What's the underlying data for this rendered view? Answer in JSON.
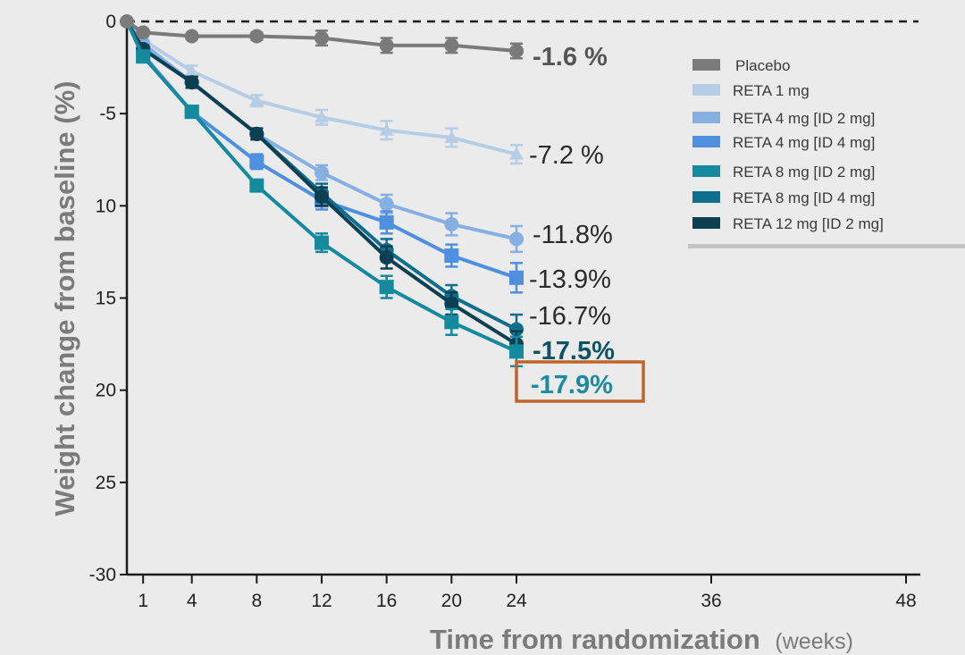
{
  "chart_data": {
    "type": "line",
    "title": "",
    "xlabel": "Time from randomization",
    "xlabel_unit": "(weeks)",
    "ylabel": "Weight change from baseline (%)",
    "xlim": [
      0,
      48
    ],
    "ylim": [
      -30,
      0
    ],
    "x_ticks": [
      1,
      4,
      8,
      12,
      16,
      20,
      24,
      36,
      48
    ],
    "y_ticks": [
      0,
      -5,
      -10,
      -15,
      -20,
      -25,
      -30
    ],
    "y_tick_labels": [
      "0",
      "-5",
      "10",
      "15",
      "20",
      "25",
      "-30"
    ],
    "reference_line": {
      "y": 0,
      "style": "dashed"
    },
    "grid": false,
    "legend_position": "top-right",
    "x": [
      0,
      1,
      4,
      8,
      12,
      16,
      20,
      24
    ],
    "series": [
      {
        "name": "Placebo",
        "color": "#7a7a7a",
        "marker": "circle",
        "values": [
          0,
          -0.6,
          -0.8,
          -0.8,
          -0.9,
          -1.3,
          -1.3,
          -1.6
        ],
        "error": [
          0,
          0.1,
          0.1,
          0.2,
          0.4,
          0.4,
          0.4,
          0.4
        ],
        "end_label": "-1.6 %",
        "end_label_bold": true,
        "end_label_color": "#555555"
      },
      {
        "name": "RETA 1 mg",
        "color": "#b6cde6",
        "marker": "triangle",
        "values": [
          0,
          -1.0,
          -2.7,
          -4.3,
          -5.2,
          -5.9,
          -6.3,
          -7.2
        ],
        "error": [
          0,
          0.2,
          0.3,
          0.3,
          0.4,
          0.5,
          0.5,
          0.5
        ],
        "end_label": "-7.2 %",
        "end_label_bold": false,
        "end_label_color": "#2b2b2b"
      },
      {
        "name": "RETA 4 mg [ID 2 mg]",
        "color": "#86afe2",
        "marker": "circle",
        "values": [
          0,
          -1.2,
          -3.3,
          -6.1,
          -8.2,
          -9.9,
          -11.0,
          -11.8
        ],
        "error": [
          0,
          0.2,
          0.3,
          0.3,
          0.4,
          0.5,
          0.6,
          0.7
        ],
        "end_label": "-11.8%",
        "end_label_bold": false,
        "end_label_color": "#2b2b2b"
      },
      {
        "name": "RETA 4 mg [ID 4 mg]",
        "color": "#4f8fe0",
        "marker": "square",
        "values": [
          0,
          -1.8,
          -4.9,
          -7.6,
          -9.7,
          -10.9,
          -12.7,
          -13.9
        ],
        "error": [
          0,
          0.2,
          0.3,
          0.4,
          0.5,
          0.6,
          0.6,
          0.8
        ],
        "end_label": "-13.9%",
        "end_label_bold": false,
        "end_label_color": "#2b2b2b"
      },
      {
        "name": "RETA 8 mg [ID 2 mg]",
        "color": "#138a9e",
        "marker": "square",
        "values": [
          0,
          -1.9,
          -4.9,
          -8.9,
          -12.0,
          -14.4,
          -16.3,
          -17.9
        ],
        "error": [
          0,
          0.2,
          0.3,
          0.3,
          0.5,
          0.6,
          0.7,
          0.8
        ],
        "end_label": "-17.9%",
        "end_label_bold": true,
        "end_label_color": "#1b8aa0",
        "highlighted": true
      },
      {
        "name": "RETA 8 mg [ID 4 mg]",
        "color": "#0e6f8c",
        "marker": "circle",
        "values": [
          0,
          -1.5,
          -3.3,
          -6.1,
          -9.3,
          -12.4,
          -14.9,
          -16.7
        ],
        "error": [
          0,
          0.2,
          0.3,
          0.3,
          0.5,
          0.6,
          0.6,
          0.8
        ],
        "end_label": "-16.7%",
        "end_label_bold": false,
        "end_label_color": "#2b2b2b"
      },
      {
        "name": "RETA 12 mg [ID 2 mg]",
        "color": "#0b3f52",
        "marker": "circle",
        "values": [
          0,
          -1.5,
          -3.3,
          -6.1,
          -9.5,
          -12.8,
          -15.3,
          -17.5
        ],
        "error": [
          0,
          0.2,
          0.3,
          0.3,
          0.5,
          0.6,
          0.6,
          0.7
        ],
        "end_label": "-17.5%",
        "end_label_bold": true,
        "end_label_color": "#0d5366"
      }
    ],
    "highlight_box_color": "#c0652a"
  }
}
